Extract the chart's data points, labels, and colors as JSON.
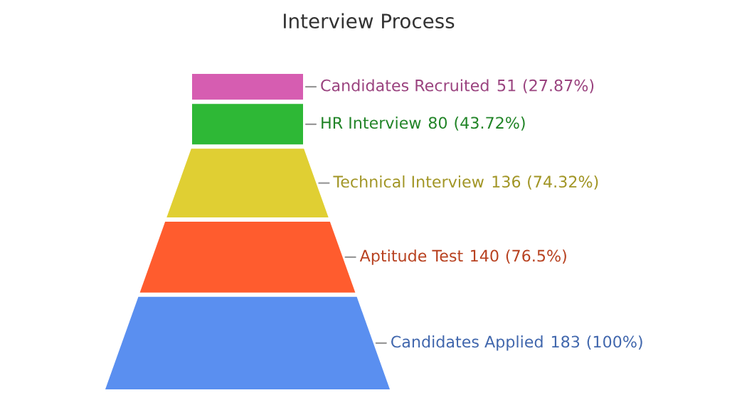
{
  "chart_data": {
    "type": "other",
    "title": "Interview Process",
    "categories": [
      "Candidates Recruited",
      "HR Interview",
      "Technical Interview",
      "Aptitude Test",
      "Candidates Applied"
    ],
    "values": [
      51,
      80,
      136,
      140,
      183
    ],
    "data_labels": true,
    "annotations": [
      "(27.87%)",
      "(43.72%)",
      "(74.32%)",
      "(76.5%)",
      "(100%)"
    ],
    "colors": [
      "#d65db1",
      "#2eb836",
      "#e0cf33",
      "#ff5c2e",
      "#5a8ff0"
    ]
  }
}
